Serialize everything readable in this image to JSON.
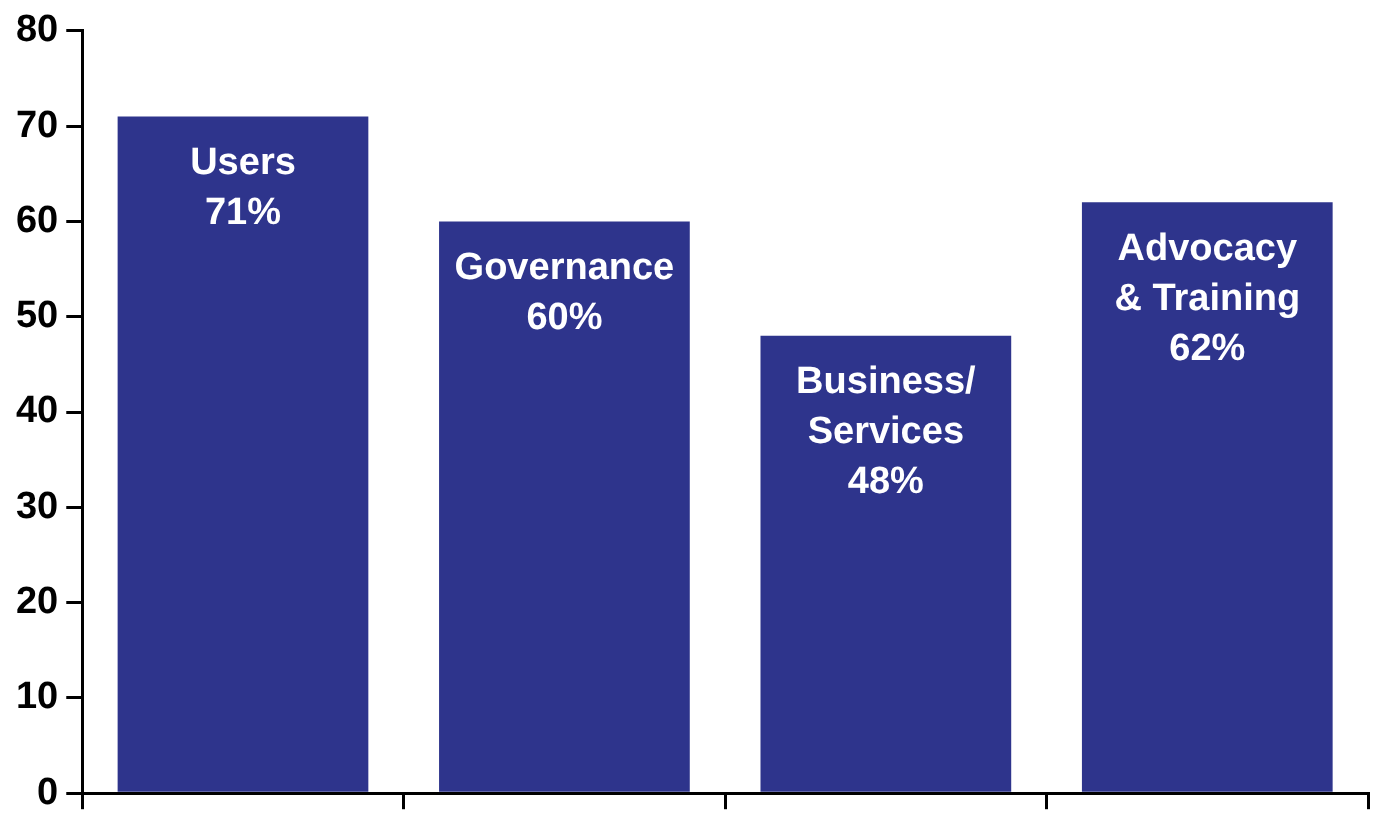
{
  "chart_data": {
    "type": "bar",
    "categories": [
      "Users",
      "Governance",
      "Business/\nServices",
      "Advocacy\n& Training"
    ],
    "values": [
      71,
      60,
      48,
      62
    ],
    "value_labels": [
      "71%",
      "60%",
      "48%",
      "62%"
    ],
    "color": "#2e348c",
    "ylim": [
      0,
      80
    ],
    "yticks": [
      0,
      10,
      20,
      30,
      40,
      50,
      60,
      70,
      80
    ],
    "grid": false,
    "legend": false,
    "tick_labels": "y"
  }
}
